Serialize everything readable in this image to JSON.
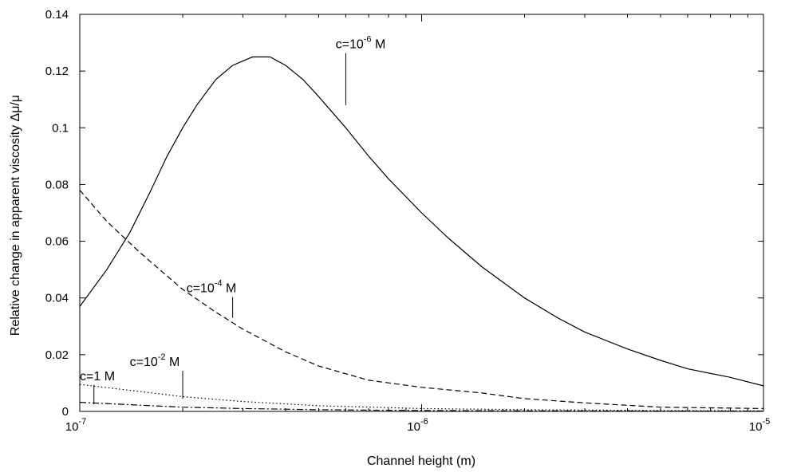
{
  "chart_data": {
    "type": "line",
    "xlabel": "Channel height (m)",
    "ylabel": "Relative change in apparent viscosity Δμ/μ",
    "xscale": "log",
    "xlim": [
      1e-07,
      1e-05
    ],
    "ylim": [
      0,
      0.14
    ],
    "grid": false,
    "x_ticks": [
      {
        "value": 1e-07,
        "base": "10",
        "exp": "-7"
      },
      {
        "value": 1e-06,
        "base": "10",
        "exp": "-6"
      },
      {
        "value": 1e-05,
        "base": "10",
        "exp": "-5"
      }
    ],
    "y_ticks": [
      {
        "value": 0,
        "label": "0"
      },
      {
        "value": 0.02,
        "label": "0.02"
      },
      {
        "value": 0.04,
        "label": "0.04"
      },
      {
        "value": 0.06,
        "label": "0.06"
      },
      {
        "value": 0.08,
        "label": "0.08"
      },
      {
        "value": 0.1,
        "label": "0.1"
      },
      {
        "value": 0.12,
        "label": "0.12"
      },
      {
        "value": 0.14,
        "label": "0.14"
      }
    ],
    "series": [
      {
        "id": "c-1e-6",
        "style": "solid",
        "x": [
          1e-07,
          1.2e-07,
          1.4e-07,
          1.6e-07,
          1.8e-07,
          2e-07,
          2.2e-07,
          2.5e-07,
          2.8e-07,
          3.2e-07,
          3.6e-07,
          4e-07,
          4.5e-07,
          5e-07,
          6e-07,
          7e-07,
          8e-07,
          1e-06,
          1.2e-06,
          1.5e-06,
          2e-06,
          2.5e-06,
          3e-06,
          4e-06,
          5e-06,
          6e-06,
          8e-06,
          1e-05
        ],
        "y": [
          0.037,
          0.05,
          0.063,
          0.077,
          0.09,
          0.1,
          0.108,
          0.117,
          0.122,
          0.125,
          0.125,
          0.122,
          0.117,
          0.111,
          0.1,
          0.09,
          0.082,
          0.07,
          0.061,
          0.051,
          0.04,
          0.033,
          0.028,
          0.022,
          0.018,
          0.015,
          0.012,
          0.009
        ]
      },
      {
        "id": "c-1e-4",
        "style": "dashed",
        "x": [
          1e-07,
          1.2e-07,
          1.5e-07,
          2e-07,
          2.5e-07,
          3e-07,
          4e-07,
          5e-07,
          7e-07,
          1e-06,
          1.5e-06,
          2e-06,
          3e-06,
          5e-06,
          1e-05
        ],
        "y": [
          0.078,
          0.067,
          0.056,
          0.043,
          0.035,
          0.029,
          0.021,
          0.016,
          0.011,
          0.0085,
          0.0065,
          0.0045,
          0.003,
          0.0015,
          0.001
        ]
      },
      {
        "id": "c-1e-2",
        "style": "dotted",
        "x": [
          1e-07,
          1.5e-07,
          2e-07,
          3e-07,
          5e-07,
          1e-06,
          2e-06,
          5e-06,
          1e-05
        ],
        "y": [
          0.0095,
          0.007,
          0.0052,
          0.0035,
          0.002,
          0.001,
          0.0006,
          0.0003,
          0.0002
        ]
      },
      {
        "id": "c-1",
        "style": "dashdot",
        "x": [
          1e-07,
          1.5e-07,
          2e-07,
          3e-07,
          5e-07,
          1e-06,
          2e-06,
          5e-06,
          1e-05
        ],
        "y": [
          0.0032,
          0.0022,
          0.0015,
          0.001,
          0.0006,
          0.0003,
          0.0002,
          0.0001,
          0.0001
        ]
      }
    ],
    "annotations": [
      {
        "id": "c-1e-6",
        "text": "c=10",
        "sup": "-6",
        "suffix": " M",
        "at": [
          6e-07,
          0.108
        ],
        "label": [
          5.6e-07,
          0.128
        ]
      },
      {
        "id": "c-1e-4",
        "text": "c=10",
        "sup": "-4",
        "suffix": " M",
        "at": [
          2.8e-07,
          0.033
        ],
        "label": [
          2.05e-07,
          0.042
        ]
      },
      {
        "id": "c-1e-2",
        "text": "c=10",
        "sup": "-2",
        "suffix": " M",
        "at": [
          2e-07,
          0.0045
        ],
        "label": [
          1.4e-07,
          0.016
        ]
      },
      {
        "id": "c-1",
        "text": "c=1 M",
        "sup": "",
        "suffix": "",
        "at": [
          1.1e-07,
          0.0025
        ],
        "label": [
          1e-07,
          0.011
        ]
      }
    ]
  }
}
